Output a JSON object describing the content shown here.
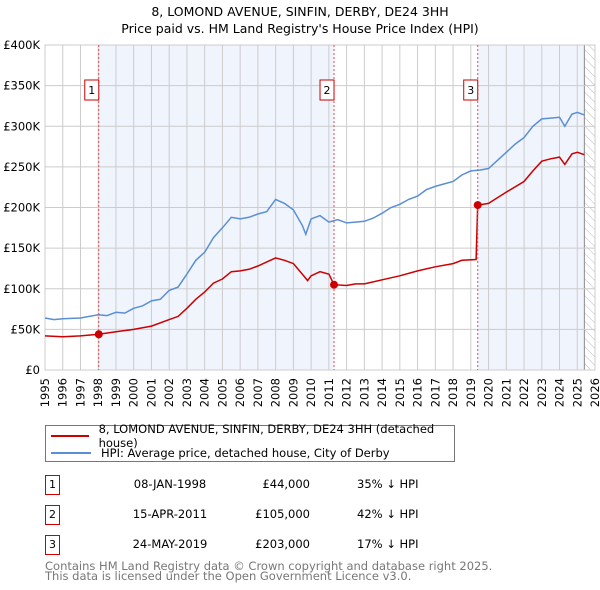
{
  "title": "8, LOMOND AVENUE, SINFIN, DERBY, DE24 3HH",
  "subtitle": "Price paid vs. HM Land Registry's House Price Index (HPI)",
  "colors": {
    "property": "#cc0000",
    "hpi": "#5b8fd4",
    "shade": "#f0f4fd",
    "grid": "#cccccc"
  },
  "chart_data": {
    "type": "line",
    "title": "8, LOMOND AVENUE, SINFIN, DERBY, DE24 3HH — Price paid vs. HM Land Registry's House Price Index (HPI)",
    "xlim": [
      1995,
      2026
    ],
    "ylim": [
      0,
      400000
    ],
    "x_ticks": [
      "1995",
      "1996",
      "1997",
      "1998",
      "1999",
      "2000",
      "2001",
      "2002",
      "2003",
      "2004",
      "2005",
      "2006",
      "2007",
      "2008",
      "2009",
      "2010",
      "2011",
      "2012",
      "2013",
      "2014",
      "2015",
      "2016",
      "2017",
      "2018",
      "2019",
      "2020",
      "2021",
      "2022",
      "2023",
      "2024",
      "2025",
      "2026"
    ],
    "y_ticks": [
      {
        "v": 0,
        "label": "£0"
      },
      {
        "v": 50000,
        "label": "£50K"
      },
      {
        "v": 100000,
        "label": "£100K"
      },
      {
        "v": 150000,
        "label": "£150K"
      },
      {
        "v": 200000,
        "label": "£200K"
      },
      {
        "v": 250000,
        "label": "£250K"
      },
      {
        "v": 300000,
        "label": "£300K"
      },
      {
        "v": 350000,
        "label": "£350K"
      },
      {
        "v": 400000,
        "label": "£400K"
      }
    ],
    "grid": true,
    "forecast_hatch_from": 2025.4,
    "series": [
      {
        "name": "8, LOMOND AVENUE, SINFIN, DERBY, DE24 3HH (detached house)",
        "color": "#cc0000",
        "x": [
          1995,
          1996,
          1997,
          1998.03,
          1999,
          2000,
          2001,
          2002,
          2002.5,
          2003,
          2003.5,
          2004,
          2004.5,
          2005,
          2005.5,
          2006,
          2006.5,
          2007,
          2007.5,
          2008,
          2008.5,
          2009,
          2009.5,
          2009.8,
          2010,
          2010.5,
          2011,
          2011.29,
          2012,
          2012.5,
          2013,
          2014,
          2015,
          2016,
          2017,
          2018,
          2018.5,
          2019.3,
          2019.39,
          2020,
          2020.5,
          2021,
          2022,
          2022.5,
          2023,
          2023.5,
          2024,
          2024.3,
          2024.7,
          2025,
          2025.4
        ],
        "y": [
          42000,
          41000,
          42000,
          44000,
          47000,
          50000,
          54000,
          62000,
          66000,
          76000,
          87000,
          96000,
          107000,
          112000,
          121000,
          122000,
          124000,
          128000,
          133000,
          138000,
          135000,
          131000,
          118000,
          110000,
          116000,
          121000,
          118000,
          105000,
          104000,
          106000,
          106000,
          111000,
          116000,
          122000,
          127000,
          131000,
          135000,
          136000,
          203000,
          205000,
          212000,
          219000,
          232000,
          245000,
          257000,
          260000,
          262000,
          253000,
          266000,
          268000,
          265000
        ]
      },
      {
        "name": "HPI: Average price, detached house, City of Derby",
        "color": "#5b8fd4",
        "x": [
          1995,
          1995.5,
          1996,
          1997,
          1998,
          1998.5,
          1999,
          1999.5,
          2000,
          2000.5,
          2001,
          2001.5,
          2002,
          2002.5,
          2003,
          2003.5,
          2004,
          2004.5,
          2005,
          2005.5,
          2006,
          2006.5,
          2007,
          2007.5,
          2008,
          2008.5,
          2009,
          2009.5,
          2009.7,
          2010,
          2010.5,
          2011,
          2011.5,
          2012,
          2012.5,
          2013,
          2013.5,
          2014,
          2014.5,
          2015,
          2015.5,
          2016,
          2016.5,
          2017,
          2017.5,
          2018,
          2018.5,
          2019,
          2019.5,
          2020,
          2020.5,
          2021,
          2021.5,
          2022,
          2022.5,
          2023,
          2023.5,
          2024,
          2024.3,
          2024.7,
          2025,
          2025.4
        ],
        "y": [
          64000,
          62000,
          63000,
          64000,
          68000,
          67000,
          71000,
          70000,
          76000,
          79000,
          85000,
          87000,
          98000,
          102000,
          118000,
          135000,
          145000,
          163000,
          175000,
          188000,
          186000,
          188000,
          192000,
          195000,
          210000,
          205000,
          197000,
          178000,
          167000,
          186000,
          190000,
          182000,
          185000,
          181000,
          182000,
          183000,
          187000,
          193000,
          200000,
          204000,
          210000,
          214000,
          222000,
          226000,
          229000,
          232000,
          240000,
          245000,
          246000,
          248000,
          258000,
          268000,
          278000,
          286000,
          300000,
          309000,
          310000,
          311000,
          300000,
          315000,
          317000,
          314000
        ]
      }
    ],
    "sales": [
      {
        "id": "1",
        "x": 1998.03,
        "y": 44000
      },
      {
        "id": "2",
        "x": 2011.29,
        "y": 105000
      },
      {
        "id": "3",
        "x": 2019.39,
        "y": 203000
      }
    ]
  },
  "legend": {
    "property": "8, LOMOND AVENUE, SINFIN, DERBY, DE24 3HH (detached house)",
    "hpi": "HPI: Average price, detached house, City of Derby"
  },
  "transactions": [
    {
      "id": "1",
      "date": "08-JAN-1998",
      "price": "£44,000",
      "hpi": "35% ↓ HPI"
    },
    {
      "id": "2",
      "date": "15-APR-2011",
      "price": "£105,000",
      "hpi": "42% ↓ HPI"
    },
    {
      "id": "3",
      "date": "24-MAY-2019",
      "price": "£203,000",
      "hpi": "17% ↓ HPI"
    }
  ],
  "footer": {
    "line1": "Contains HM Land Registry data © Crown copyright and database right 2025.",
    "line2": "This data is licensed under the Open Government Licence v3.0."
  }
}
